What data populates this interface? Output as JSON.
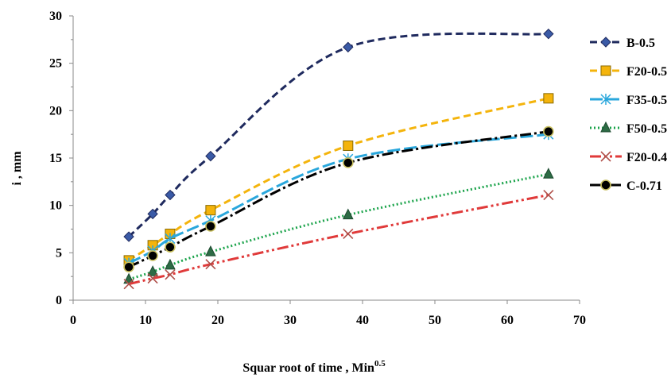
{
  "chart_data": {
    "type": "line",
    "title": "",
    "xlabel": "Squar root of time , Min",
    "xlabel_sup": "0.5",
    "ylabel": "i , mm",
    "xlim": [
      0,
      70
    ],
    "ylim": [
      0,
      30
    ],
    "xticks": [
      "0",
      "10",
      "20",
      "30",
      "40",
      "50",
      "60",
      "70"
    ],
    "yticks": [
      "0",
      "5",
      "10",
      "15",
      "20",
      "25",
      "30"
    ],
    "grid": false,
    "legend_position": "right",
    "series": [
      {
        "name": "B-0.5",
        "color": "#1f2a5e",
        "dash": "dashed",
        "marker": "diamond",
        "x": [
          7.7,
          11,
          13.4,
          19,
          38,
          65.7
        ],
        "y": [
          6.7,
          9.1,
          11.1,
          15.2,
          26.7,
          28.1
        ]
      },
      {
        "name": "F20-0.5",
        "color": "#f4b40c",
        "dash": "dashed",
        "marker": "square",
        "x": [
          7.7,
          11,
          13.4,
          19,
          38,
          65.7
        ],
        "y": [
          4.2,
          5.8,
          7.0,
          9.5,
          16.3,
          21.3
        ]
      },
      {
        "name": "F35-0.5",
        "color": "#2aa7dc",
        "dash": "longdash",
        "marker": "asterisk",
        "x": [
          7.7,
          11,
          13.4,
          19,
          38,
          65.7
        ],
        "y": [
          3.9,
          5.2,
          6.5,
          8.4,
          14.9,
          17.5
        ]
      },
      {
        "name": "F50-0.5",
        "color": "#1aa34a",
        "dash": "dotted",
        "marker": "triangle",
        "x": [
          7.7,
          11,
          13.4,
          19,
          38,
          65.7
        ],
        "y": [
          2.2,
          3.0,
          3.7,
          5.1,
          9.0,
          13.3
        ]
      },
      {
        "name": "F20-0.4",
        "color": "#e03a3a",
        "dash": "dashdotdot",
        "marker": "x",
        "x": [
          7.7,
          11,
          13.4,
          19,
          38,
          65.7
        ],
        "y": [
          1.7,
          2.3,
          2.7,
          3.8,
          7.0,
          11.1
        ]
      },
      {
        "name": "C-0.71",
        "color": "#000000",
        "dash": "dashdot",
        "marker": "circle",
        "x": [
          7.7,
          11,
          13.4,
          19,
          38,
          65.7
        ],
        "y": [
          3.5,
          4.7,
          5.6,
          7.8,
          14.5,
          17.8
        ]
      }
    ]
  }
}
